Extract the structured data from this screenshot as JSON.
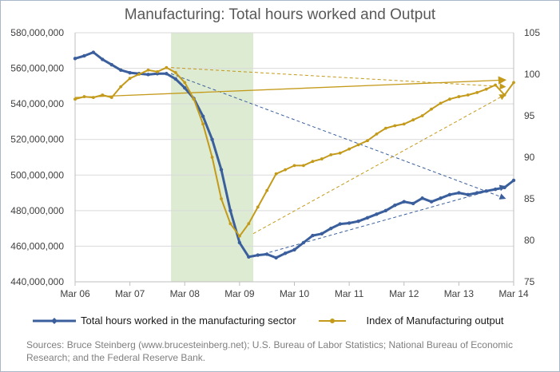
{
  "chart_data": {
    "type": "line",
    "title": "Manufacturing: Total hours worked and Output",
    "x_tick_labels": [
      "Mar 06",
      "Mar 07",
      "Mar 08",
      "Mar 09",
      "Mar 10",
      "Mar 11",
      "Mar 12",
      "Mar 13",
      "Mar 14"
    ],
    "y_left": {
      "ylim": [
        440000000,
        580000000
      ],
      "ticks": [
        "440,000,000",
        "460,000,000",
        "480,000,000",
        "500,000,000",
        "520,000,000",
        "540,000,000",
        "560,000,000",
        "580,000,000"
      ]
    },
    "y_right": {
      "ylim": [
        75,
        105
      ],
      "ticks": [
        "75",
        "80",
        "85",
        "90",
        "95",
        "100",
        "105"
      ]
    },
    "shaded_period": {
      "start": "Dec 07",
      "end": "Jun 09"
    },
    "series": [
      {
        "name": "Total hours worked in the manufacturing sector",
        "axis": "left",
        "color": "#3a5f9c",
        "x": [
          "Mar 06",
          "May 06",
          "Jul 06",
          "Sep 06",
          "Nov 06",
          "Jan 07",
          "Mar 07",
          "May 07",
          "Jul 07",
          "Sep 07",
          "Nov 07",
          "Jan 08",
          "Mar 08",
          "May 08",
          "Jul 08",
          "Sep 08",
          "Nov 08",
          "Jan 09",
          "Mar 09",
          "May 09",
          "Jul 09",
          "Sep 09",
          "Nov 09",
          "Jan 10",
          "Mar 10",
          "May 10",
          "Jul 10",
          "Sep 10",
          "Nov 10",
          "Jan 11",
          "Mar 11",
          "May 11",
          "Jul 11",
          "Sep 11",
          "Nov 11",
          "Jan 12",
          "Mar 12",
          "May 12",
          "Jul 12",
          "Sep 12",
          "Nov 12",
          "Jan 13",
          "Mar 13",
          "May 13",
          "Jul 13",
          "Sep 13",
          "Nov 13",
          "Jan 14",
          "Mar 14"
        ],
        "values": [
          565500000,
          567000000,
          569000000,
          565000000,
          562000000,
          559000000,
          557500000,
          557000000,
          556500000,
          557000000,
          557000000,
          554000000,
          549000000,
          543000000,
          533000000,
          520000000,
          503000000,
          480000000,
          462000000,
          454000000,
          455000000,
          455500000,
          453500000,
          456000000,
          458000000,
          462000000,
          466000000,
          467000000,
          470000000,
          472500000,
          473000000,
          474000000,
          476000000,
          478000000,
          480000000,
          483000000,
          485000000,
          484000000,
          487000000,
          485000000,
          487000000,
          489000000,
          490000000,
          489000000,
          490000000,
          491000000,
          492000000,
          493000000,
          497000000
        ]
      },
      {
        "name": "Index of Manufacturing output",
        "axis": "right",
        "color": "#c49a1a",
        "x": [
          "Mar 06",
          "May 06",
          "Jul 06",
          "Sep 06",
          "Nov 06",
          "Jan 07",
          "Mar 07",
          "May 07",
          "Jul 07",
          "Sep 07",
          "Nov 07",
          "Jan 08",
          "Mar 08",
          "May 08",
          "Jul 08",
          "Sep 08",
          "Nov 08",
          "Jan 09",
          "Mar 09",
          "May 09",
          "Jul 09",
          "Sep 09",
          "Nov 09",
          "Jan 10",
          "Mar 10",
          "May 10",
          "Jul 10",
          "Sep 10",
          "Nov 10",
          "Jan 11",
          "Mar 11",
          "May 11",
          "Jul 11",
          "Sep 11",
          "Nov 11",
          "Jan 12",
          "Mar 12",
          "May 12",
          "Jul 12",
          "Sep 12",
          "Nov 12",
          "Jan 13",
          "Mar 13",
          "May 13",
          "Jul 13",
          "Sep 13",
          "Nov 13",
          "Jan 14",
          "Mar 14"
        ],
        "values": [
          97,
          97.3,
          97.2,
          97.5,
          97.2,
          98.5,
          99.5,
          100,
          100.5,
          100.3,
          100.8,
          100.2,
          99,
          97,
          94,
          90,
          85,
          82,
          80.5,
          82,
          84,
          86,
          88,
          88.5,
          89,
          89,
          89.5,
          89.8,
          90.3,
          90.5,
          91,
          91.5,
          92,
          92.8,
          93.5,
          93.8,
          94,
          94.5,
          95,
          95.8,
          96.5,
          97,
          97.3,
          97.5,
          97.8,
          98.2,
          98.7,
          97.5,
          99
        ]
      }
    ],
    "trend_arrows": [
      {
        "series": "Total hours worked in the manufacturing sector",
        "from": [
          "Dec 07",
          557000000
        ],
        "to": [
          "Jan 14",
          487000000
        ]
      },
      {
        "series": "Total hours worked in the manufacturing sector",
        "from": [
          "Jun 09",
          454000000
        ],
        "to": [
          "Jan 14",
          493500000
        ]
      },
      {
        "series": "Index of Manufacturing output",
        "from": [
          "Mar 06",
          97.2
        ],
        "to": [
          "Jan 14",
          99.3
        ]
      },
      {
        "series": "Index of Manufacturing output",
        "from": [
          "Dec 07",
          100.8
        ],
        "to": [
          "Jan 14",
          98.5
        ]
      },
      {
        "series": "Index of Manufacturing output",
        "from": [
          "Jun 09",
          80.8
        ],
        "to": [
          "Jan 14",
          97.5
        ]
      }
    ],
    "legend_position": "bottom",
    "grid": true
  },
  "source_text": "Sources: Bruce Steinberg (www.brucesteinberg.net); U.S. Bureau of Labor Statistics; National Bureau of Economic Research; and the Federal Reserve Bank."
}
